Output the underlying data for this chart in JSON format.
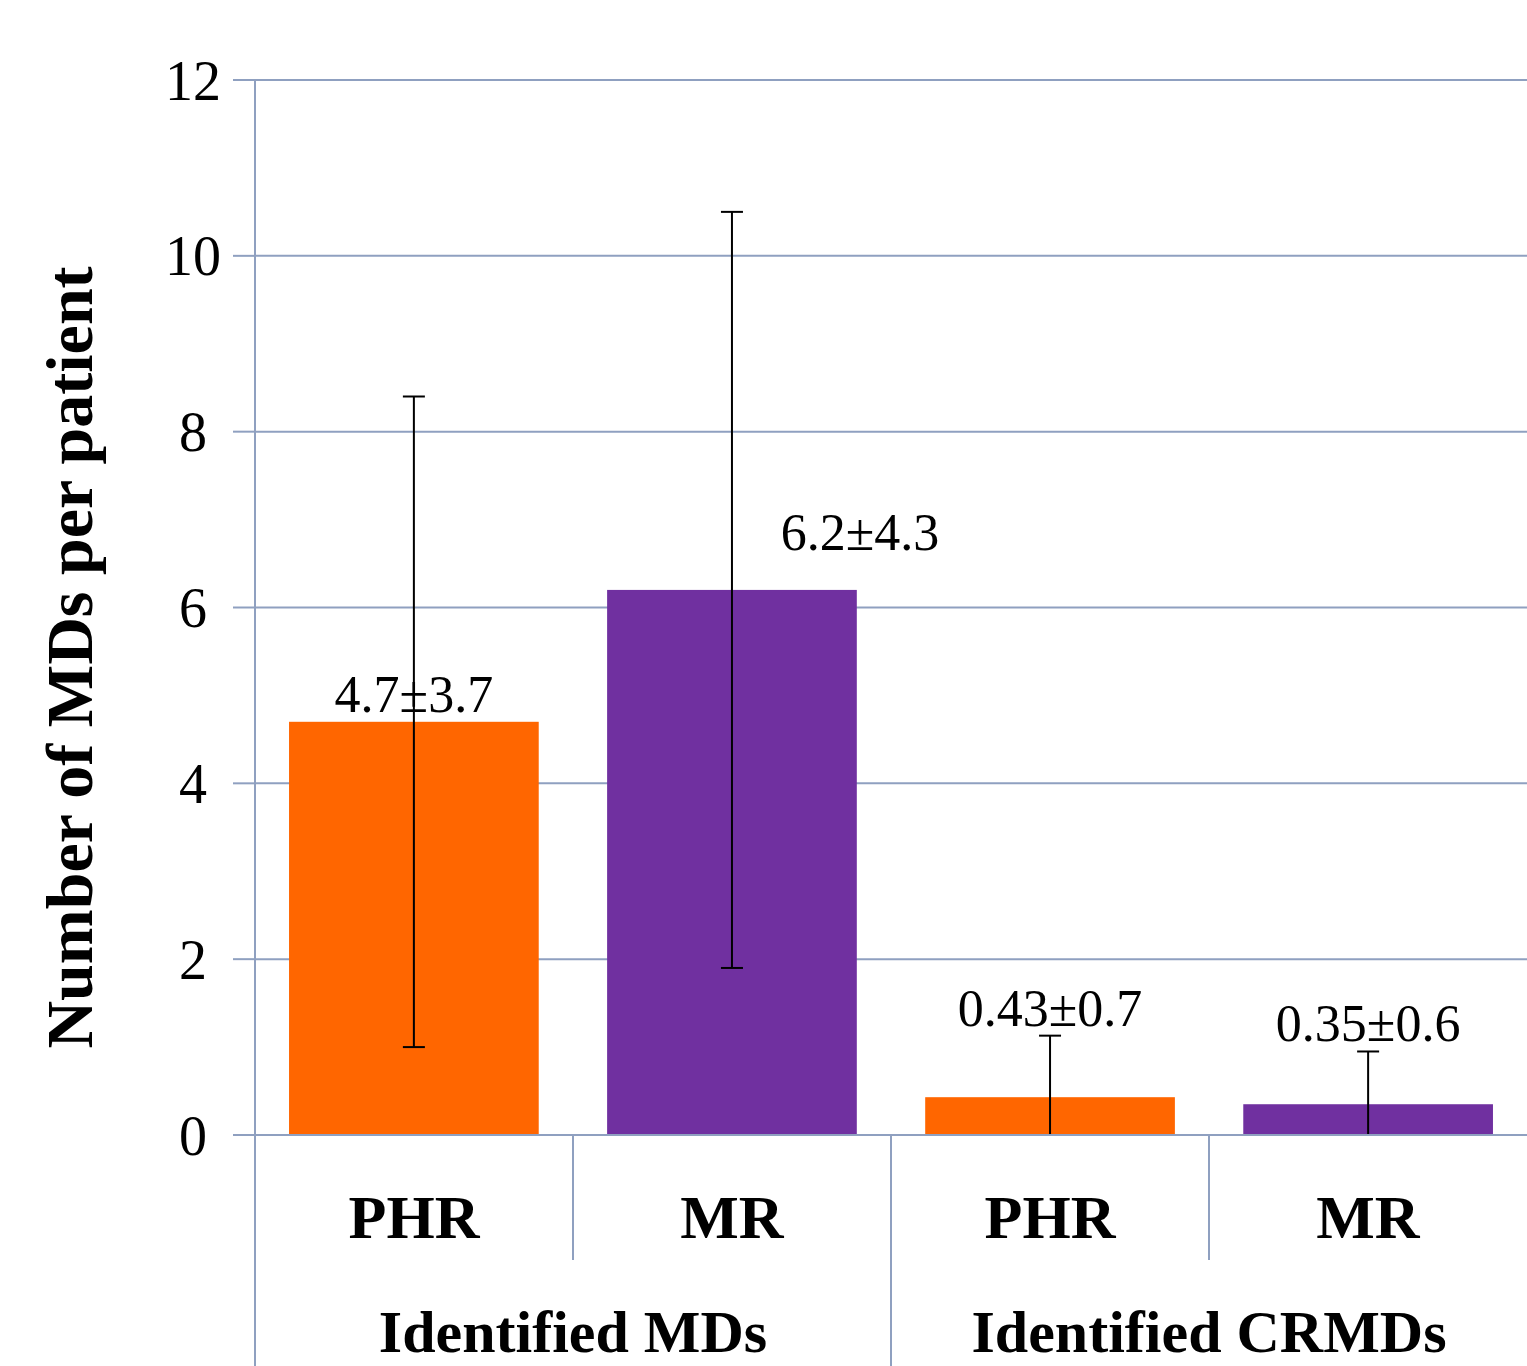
{
  "chart_data": {
    "type": "bar",
    "ylabel": "Number of MDs per patient",
    "categories": [
      "PHR",
      "MR",
      "PHR",
      "MR"
    ],
    "values": [
      4.7,
      6.2,
      0.43,
      0.35
    ],
    "colors": [
      "#ff6600",
      "#7030a0",
      "#ff6600",
      "#7030a0"
    ],
    "errors": [
      3.7,
      4.3,
      [
        0,
        1.13
      ],
      [
        0,
        0.95
      ]
    ],
    "value_labels": [
      "4.7±3.7",
      "6.2±4.3",
      "0.43±0.7",
      "0.35±0.6"
    ],
    "annotations": [
      "Identified MDs",
      "Identified CRMDs"
    ],
    "ylim": [
      0,
      12
    ],
    "yticks": [
      0,
      2,
      4,
      6,
      8,
      10,
      12
    ],
    "grid": "y"
  }
}
